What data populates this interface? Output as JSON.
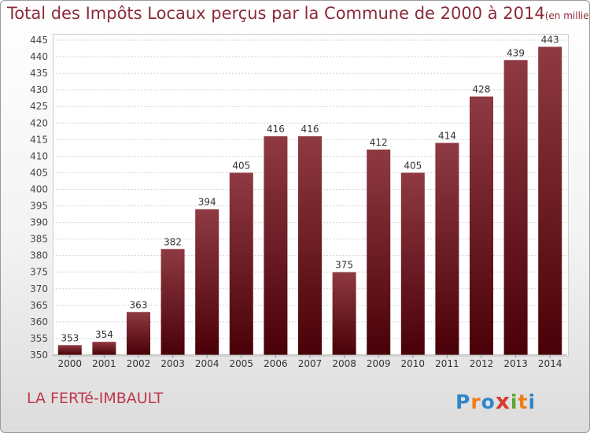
{
  "title": "Total des Impôts Locaux perçus par la Commune de 2000 à 2014",
  "unit_label": "(en milliers d'€)",
  "commune_name": "LA FERTé-IMBAULT",
  "logo": {
    "letters": [
      "P",
      "r",
      "o",
      "x",
      "i",
      "t",
      "i"
    ],
    "colors": [
      "#2f86c9",
      "#f07d18",
      "#2f86c9",
      "#d63b2f",
      "#5aa832",
      "#f07d18",
      "#2f86c9"
    ]
  },
  "colors": {
    "title": "#8a2b3a",
    "commune": "#c0364d",
    "bar_light": "#8f3a42",
    "bar_dark": "#4a0008"
  },
  "chart_data": {
    "type": "bar",
    "title": "Total des Impôts Locaux perçus par la Commune de 2000 à 2014",
    "xlabel": "",
    "ylabel": "",
    "categories": [
      "2000",
      "2001",
      "2002",
      "2003",
      "2004",
      "2005",
      "2006",
      "2007",
      "2008",
      "2009",
      "2010",
      "2011",
      "2012",
      "2013",
      "2014"
    ],
    "values": [
      353,
      354,
      363,
      382,
      394,
      405,
      416,
      416,
      375,
      412,
      405,
      414,
      428,
      439,
      443
    ],
    "ylim": [
      350,
      445
    ],
    "ytick_step": 5,
    "grid": true
  }
}
